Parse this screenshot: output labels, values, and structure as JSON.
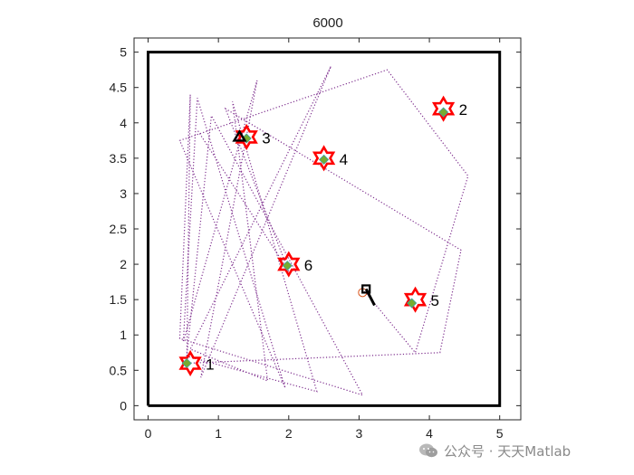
{
  "chart_data": {
    "type": "scatter",
    "title": "6000",
    "xlim": [
      -0.2,
      5.3
    ],
    "ylim": [
      -0.2,
      5.2
    ],
    "xticks": [
      "0",
      "1",
      "2",
      "3",
      "4",
      "5"
    ],
    "yticks": [
      "0",
      "0.5",
      "1",
      "1.5",
      "2",
      "2.5",
      "3",
      "3.5",
      "4",
      "4.5",
      "5"
    ],
    "grid": false,
    "boundary": [
      [
        0,
        0
      ],
      [
        5,
        0
      ],
      [
        5,
        5
      ],
      [
        0,
        5
      ],
      [
        0,
        0
      ]
    ],
    "targets": [
      {
        "label": "1",
        "x": 0.6,
        "y": 0.6,
        "green_x": 0.55,
        "green_y": 0.6
      },
      {
        "label": "2",
        "x": 4.2,
        "y": 4.2,
        "green_x": 4.2,
        "green_y": 4.15
      },
      {
        "label": "3",
        "x": 1.4,
        "y": 3.8,
        "green_x": 1.4,
        "green_y": 3.78
      },
      {
        "label": "4",
        "x": 2.5,
        "y": 3.5,
        "green_x": 2.5,
        "green_y": 3.48
      },
      {
        "label": "5",
        "x": 3.8,
        "y": 1.5,
        "green_x": 3.75,
        "green_y": 1.45
      },
      {
        "label": "6",
        "x": 2.0,
        "y": 2.0,
        "green_x": 1.98,
        "green_y": 1.98
      }
    ],
    "trajectory": [
      [
        3.05,
        1.65
      ],
      [
        3.8,
        0.75
      ],
      [
        4.55,
        3.25
      ],
      [
        3.4,
        4.75
      ],
      [
        0.45,
        3.75
      ],
      [
        1.95,
        0.25
      ],
      [
        0.7,
        4.35
      ],
      [
        0.5,
        0.9
      ],
      [
        1.55,
        4.6
      ],
      [
        0.75,
        0.4
      ],
      [
        2.6,
        4.8
      ],
      [
        0.6,
        0.8
      ],
      [
        1.7,
        0.35
      ],
      [
        1.2,
        4.3
      ],
      [
        2.4,
        0.2
      ],
      [
        0.55,
        0.7
      ],
      [
        0.9,
        4.1
      ],
      [
        3.05,
        0.15
      ],
      [
        0.45,
        0.95
      ],
      [
        0.6,
        4.4
      ],
      [
        0.55,
        0.6
      ],
      [
        4.15,
        0.75
      ],
      [
        4.45,
        2.2
      ],
      [
        1.1,
        4.2
      ],
      [
        2.0,
        1.9
      ],
      [
        0.7,
        3.9
      ]
    ],
    "robot_square": [
      3.1,
      1.65
    ],
    "robot_heading_end": [
      3.22,
      1.42
    ],
    "robot_circle": [
      3.05,
      1.6
    ],
    "robot_triangle": [
      1.3,
      3.8
    ],
    "colors": {
      "boundary": "#000000",
      "trajectory": "#7e2f8e",
      "star": "#ff0000",
      "target_marker": "#77ac30",
      "robot": "#000000",
      "circle": "#d95319"
    }
  },
  "watermark": {
    "text": "公众号 · 天天Matlab",
    "icon": "wechat-icon"
  }
}
